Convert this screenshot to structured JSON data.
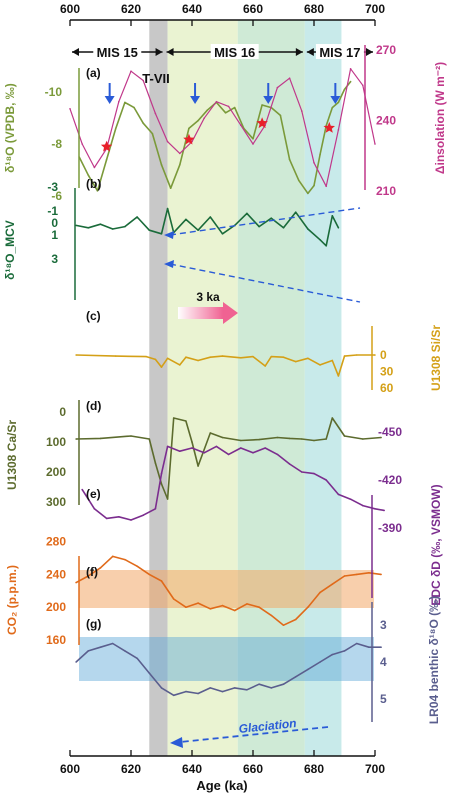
{
  "chart_data": {
    "type": "line",
    "xaxis": {
      "label": "Age (ka)",
      "ticks": [
        "600",
        "620",
        "640",
        "660",
        "680",
        "700"
      ],
      "range": [
        600,
        700
      ]
    },
    "stages": [
      {
        "name": "MIS 15",
        "from": 600,
        "to": 631
      },
      {
        "name": "MIS 16",
        "from": 631,
        "to": 677
      },
      {
        "name": "MIS 17",
        "from": 677,
        "to": 700
      }
    ],
    "shading": [
      {
        "from": 626,
        "to": 632,
        "color": "#c8c8c8"
      },
      {
        "from": 632,
        "to": 655,
        "color": "#eaf3d2"
      },
      {
        "from": 655,
        "to": 677,
        "color": "#cfead6"
      },
      {
        "from": 677,
        "to": 689,
        "color": "#c8eaea"
      }
    ],
    "annotations": {
      "termination": "T-VII",
      "phase_arrow": "3 ka",
      "glaciation": "Glaciation",
      "stars_x": [
        612,
        639,
        663,
        685
      ],
      "blue_arrows_x": [
        613,
        641,
        665,
        687
      ]
    },
    "panels": [
      {
        "letter": "(a)",
        "left_label": "δ¹⁸O (VPDB, ‰)",
        "left_ticks": [
          "-10",
          "-8",
          "-6"
        ],
        "right_label": "Δinsolation (W m⁻²)",
        "right_ticks": [
          "270",
          "240",
          "210"
        ],
        "series": [
          {
            "name": "δ18O speleothem",
            "color": "#7b9a3a",
            "x": [
              603,
              606,
              609,
              612,
              615,
              618,
              621,
              624,
              627,
              630,
              633,
              636,
              639,
              642,
              645,
              648,
              651,
              654,
              657,
              660,
              663,
              666,
              669,
              672,
              675,
              678,
              680,
              682,
              684,
              686,
              688,
              690,
              692
            ],
            "y": [
              -7.5,
              -6.8,
              -6.2,
              -7.4,
              -8.6,
              -9.6,
              -9.4,
              -8.8,
              -8.4,
              -7.2,
              -6.3,
              -7.2,
              -8.6,
              -8.9,
              -9.3,
              -9.6,
              -9.2,
              -9.4,
              -8.6,
              -8.2,
              -9.5,
              -9.4,
              -9.1,
              -7.4,
              -6.6,
              -6.1,
              -6.4,
              -7.6,
              -8.7,
              -9.4,
              -9.6,
              -10.1,
              -10.4
            ]
          },
          {
            "name": "Δinsolation",
            "color": "#c0388a",
            "x": [
              600,
              604,
              608,
              612,
              616,
              620,
              624,
              628,
              632,
              636,
              640,
              644,
              648,
              652,
              656,
              660,
              664,
              668,
              672,
              676,
              680,
              684,
              688,
              692,
              696,
              700
            ],
            "y": [
              245,
              230,
              220,
              228,
              248,
              261,
              257,
              243,
              231,
              226,
              231,
              241,
              248,
              246,
              238,
              230,
              238,
              254,
              258,
              244,
              222,
              212,
              236,
              262,
              255,
              230
            ]
          }
        ]
      },
      {
        "letter": "(b)",
        "left_label": "δ¹⁸O_MCV",
        "left_ticks": [
          "-3",
          "-1",
          "0",
          "1",
          "3"
        ],
        "series": [
          {
            "name": "δ18O_MCV",
            "color": "#1a6b3a",
            "x": [
              602,
              606,
              610,
              614,
              618,
              622,
              626,
              630,
              632,
              634,
              638,
              642,
              646,
              650,
              654,
              658,
              662,
              666,
              670,
              674,
              678,
              682,
              684,
              686,
              688
            ],
            "y": [
              0.2,
              0.4,
              0.1,
              0.5,
              0.3,
              -0.5,
              0.6,
              0.9,
              -1.2,
              0.8,
              -0.3,
              0.6,
              -0.5,
              0.9,
              0.2,
              -0.8,
              0.3,
              -0.4,
              0.4,
              -0.9,
              0.5,
              1.4,
              1.9,
              -0.6,
              0.4
            ]
          }
        ]
      },
      {
        "letter": "(c)",
        "right_label": "U1308 Si/Sr",
        "right_ticks": [
          "0",
          "30",
          "60"
        ],
        "series": [
          {
            "name": "U1308 Si/Sr",
            "color": "#d4a017",
            "x": [
              602,
              615,
              625,
              628,
              630,
              632,
              636,
              638,
              642,
              646,
              650,
              656,
              660,
              664,
              666,
              670,
              674,
              678,
              682,
              686,
              688,
              690,
              694,
              700
            ],
            "y": [
              0,
              2,
              3,
              8,
              22,
              6,
              18,
              4,
              10,
              4,
              2,
              5,
              3,
              20,
              3,
              4,
              12,
              6,
              18,
              10,
              38,
              2,
              0,
              0
            ]
          }
        ]
      },
      {
        "letter": "(d)",
        "left_label": "U1308 Ca/Sr",
        "left_ticks": [
          "0",
          "100",
          "200",
          "300"
        ],
        "series": [
          {
            "name": "U1308 Ca/Sr",
            "color": "#5c6b2e",
            "x": [
              602,
              610,
              620,
              626,
              628,
              630,
              632,
              634,
              638,
              640,
              642,
              646,
              650,
              656,
              662,
              668,
              672,
              676,
              680,
              684,
              686,
              690,
              696,
              702
            ],
            "y": [
              90,
              88,
              80,
              90,
              170,
              240,
              290,
              20,
              30,
              100,
              180,
              70,
              85,
              95,
              92,
              85,
              88,
              90,
              95,
              90,
              20,
              80,
              90,
              85
            ]
          }
        ]
      },
      {
        "letter": "(e)",
        "right_label": "EDC δD (‰, VSMOW)",
        "right_ticks": [
          "-390",
          "-420",
          "-450"
        ],
        "series": [
          {
            "name": "EDC δD",
            "color": "#7b2d8e",
            "x": [
              604,
              608,
              612,
              616,
              620,
              624,
              628,
              630,
              632,
              636,
              640,
              644,
              648,
              652,
              656,
              660,
              664,
              668,
              672,
              676,
              680,
              684,
              688,
              692,
              696,
              700,
              703
            ],
            "y": [
              -414,
              -402,
              -396,
              -397,
              -395,
              -398,
              -402,
              -424,
              -441,
              -438,
              -440,
              -437,
              -441,
              -436,
              -440,
              -437,
              -440,
              -436,
              -430,
              -425,
              -424,
              -420,
              -411,
              -408,
              -404,
              -402,
              -401
            ]
          }
        ]
      },
      {
        "letter": "(f)",
        "left_label": "CO₂ (p.p.m.)",
        "left_ticks": [
          "280",
          "240",
          "200",
          "160"
        ],
        "series": [
          {
            "name": "CO2",
            "color": "#e06a1a",
            "x": [
              602,
              606,
              610,
              614,
              618,
              622,
              626,
              630,
              634,
              638,
              642,
              646,
              650,
              654,
              658,
              662,
              666,
              670,
              674,
              678,
              682,
              686,
              690,
              694,
              698,
              702
            ],
            "y": [
              230,
              238,
              248,
              262,
              258,
              250,
              240,
              232,
              210,
              200,
              205,
              198,
              202,
              196,
              204,
              200,
              190,
              178,
              185,
              200,
              218,
              228,
              238,
              240,
              242,
              240
            ]
          }
        ]
      },
      {
        "letter": "(g)",
        "right_label": "LR04 benthic δ¹⁸O (‰)",
        "right_ticks": [
          "3",
          "4",
          "5"
        ],
        "series": [
          {
            "name": "LR04 benthic δ18O",
            "color": "#5a5e8e",
            "x": [
              602,
              606,
              610,
              614,
              618,
              622,
              626,
              630,
              634,
              638,
              642,
              646,
              650,
              654,
              658,
              662,
              666,
              670,
              674,
              678,
              682,
              686,
              690,
              694,
              698,
              702
            ],
            "y": [
              4.0,
              3.7,
              3.6,
              3.5,
              3.7,
              3.9,
              4.3,
              4.7,
              4.9,
              4.8,
              4.85,
              4.7,
              4.8,
              4.7,
              4.75,
              4.6,
              4.7,
              4.6,
              4.4,
              4.2,
              4.0,
              3.8,
              3.7,
              3.5,
              3.6,
              3.6
            ]
          }
        ]
      }
    ]
  }
}
